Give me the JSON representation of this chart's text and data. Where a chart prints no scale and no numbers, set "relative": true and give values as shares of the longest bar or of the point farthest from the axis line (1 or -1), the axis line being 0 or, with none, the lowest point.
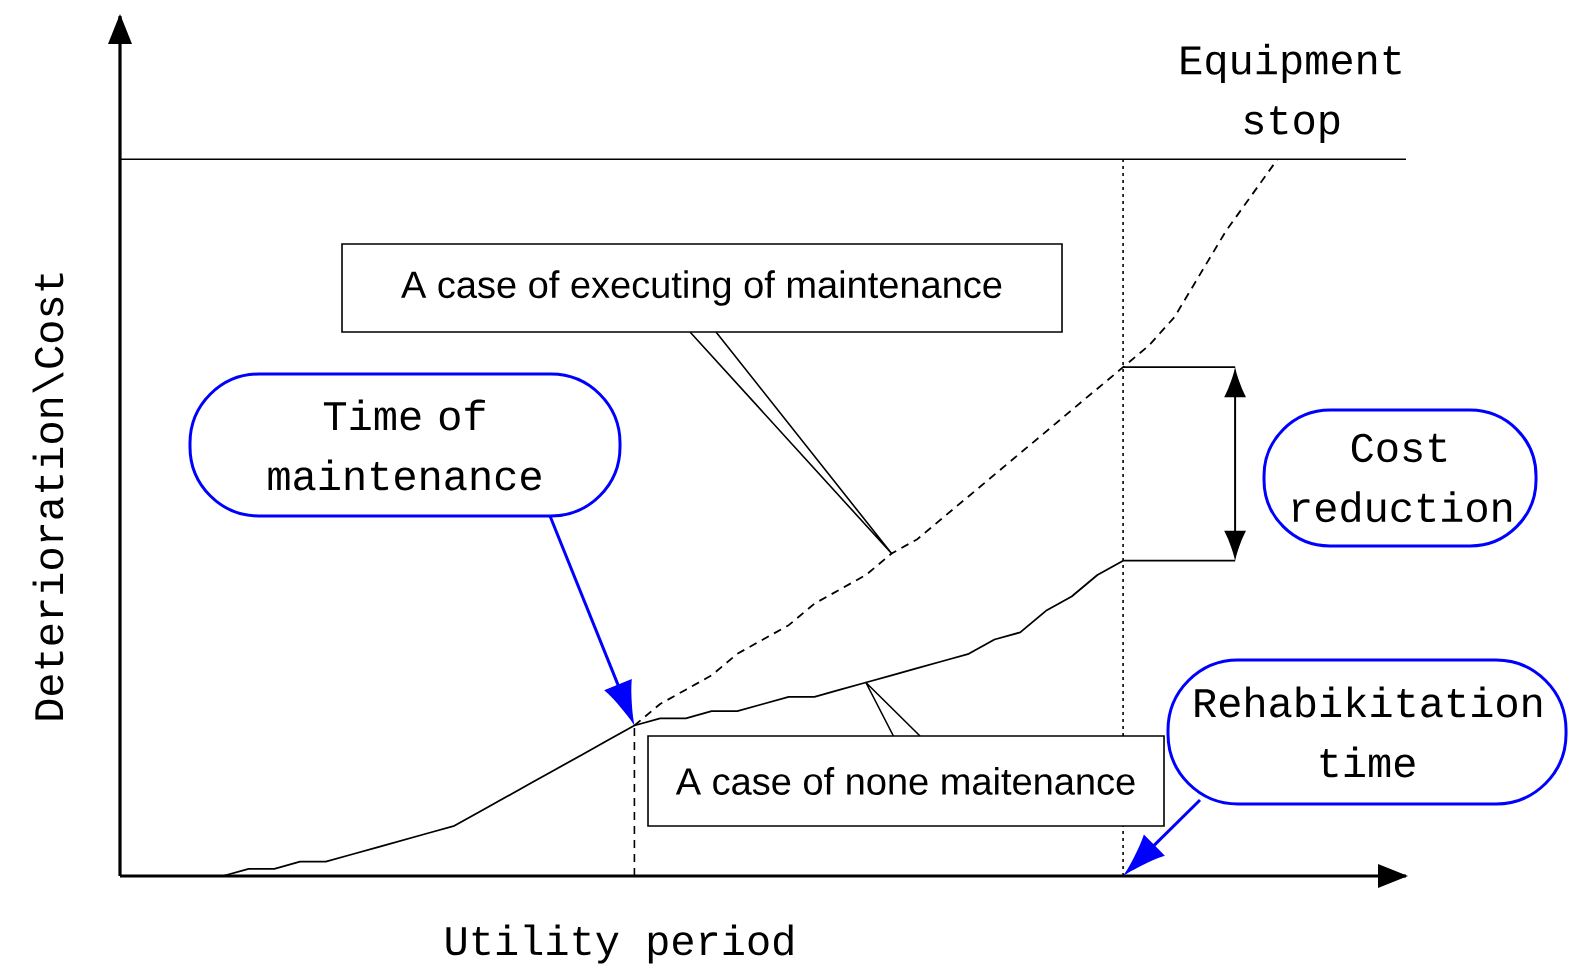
{
  "chart_data": {
    "type": "line",
    "relative": true,
    "marker": "none",
    "xlabel": "Utility period",
    "ylabel": "Deterioration\\Cost",
    "categories": [
      null,
      null,
      null,
      null,
      null,
      null,
      null,
      null,
      null,
      null,
      null,
      null,
      null,
      null,
      null,
      null,
      null,
      null,
      null,
      null,
      null,
      null,
      null,
      null,
      null,
      null,
      null,
      null,
      null,
      null,
      null,
      null,
      null,
      null,
      null,
      null,
      null,
      null,
      null,
      null,
      null,
      null,
      null,
      null,
      null,
      null
    ],
    "series": [
      {
        "name": "A case of none maitenance",
        "color": "#000000",
        "line_style": "solid",
        "values": [
          0,
          0,
          0,
          0,
          0,
          0.01,
          0.01,
          0.02,
          0.02,
          0.03,
          0.04,
          0.05,
          0.06,
          0.07,
          0.09,
          0.11,
          0.13,
          0.15,
          0.17,
          0.19,
          0.21,
          0.22,
          0.22,
          0.23,
          0.23,
          0.24,
          0.25,
          0.25,
          0.26,
          0.27,
          0.28,
          0.29,
          0.3,
          0.31,
          0.33,
          0.34,
          0.37,
          0.39,
          0.42,
          0.44,
          null,
          null,
          null,
          null,
          null,
          null
        ]
      },
      {
        "name": "A case of executing of maintenance",
        "color": "#000000",
        "line_style": "dashed",
        "values": [
          null,
          null,
          null,
          null,
          null,
          null,
          null,
          null,
          null,
          null,
          null,
          null,
          null,
          null,
          null,
          null,
          null,
          null,
          null,
          null,
          0.21,
          0.24,
          0.26,
          0.28,
          0.31,
          0.33,
          0.35,
          0.38,
          0.4,
          0.42,
          0.45,
          0.47,
          0.5,
          0.53,
          0.56,
          0.59,
          0.62,
          0.65,
          0.68,
          0.71,
          0.74,
          0.78,
          0.84,
          0.9,
          0.95,
          1.0
        ]
      }
    ],
    "ref_lines": [
      {
        "axis": "y",
        "value": 1,
        "label": "Equipment stop",
        "color": "#000000",
        "line_style": "solid"
      }
    ],
    "annotations": [
      "Time of maintenance",
      "Cost reduction",
      "Rehabikitation time"
    ]
  }
}
